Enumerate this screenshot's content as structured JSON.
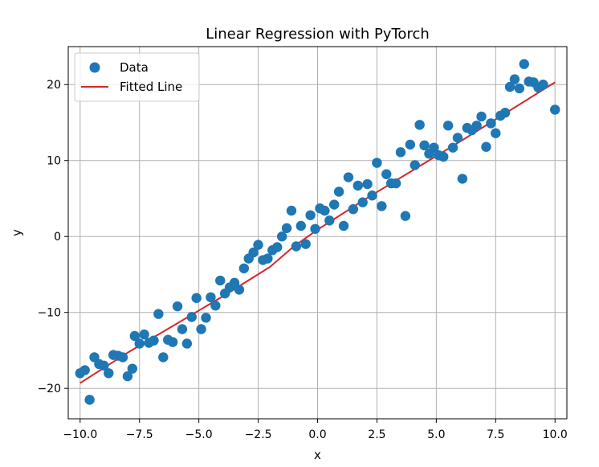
{
  "chart_data": {
    "type": "scatter",
    "title": "Linear Regression with PyTorch",
    "xlabel": "x",
    "ylabel": "y",
    "xlim": [
      -10.5,
      10.5
    ],
    "ylim": [
      -24,
      25
    ],
    "grid": true,
    "legend_placement": "top-left",
    "colors": {
      "data": "#1f77b4",
      "line": "#d62728",
      "grid": "#b0b0b0"
    },
    "x_ticks": [
      -10,
      -7.5,
      -5,
      -2.5,
      0,
      2.5,
      5,
      7.5,
      10
    ],
    "x_tick_labels": [
      "−10.0",
      "−7.5",
      "−5.0",
      "−2.5",
      "0.0",
      "2.5",
      "5.0",
      "7.5",
      "10.0"
    ],
    "y_ticks": [
      -20,
      -10,
      0,
      10,
      20
    ],
    "y_tick_labels": [
      "−20",
      "−10",
      "0",
      "10",
      "20"
    ],
    "series": [
      {
        "name": "Data",
        "kind": "scatter",
        "points": [
          [
            -10.0,
            -18.0
          ],
          [
            -9.8,
            -17.6
          ],
          [
            -9.6,
            -21.5
          ],
          [
            -9.4,
            -15.9
          ],
          [
            -9.2,
            -16.8
          ],
          [
            -9.0,
            -17.0
          ],
          [
            -8.8,
            -18.0
          ],
          [
            -8.6,
            -15.6
          ],
          [
            -8.4,
            -15.7
          ],
          [
            -8.2,
            -15.9
          ],
          [
            -8.0,
            -18.4
          ],
          [
            -7.8,
            -17.4
          ],
          [
            -7.7,
            -13.1
          ],
          [
            -7.5,
            -14.1
          ],
          [
            -7.3,
            -12.9
          ],
          [
            -7.1,
            -14.0
          ],
          [
            -6.9,
            -13.7
          ],
          [
            -6.7,
            -10.2
          ],
          [
            -6.5,
            -15.9
          ],
          [
            -6.3,
            -13.6
          ],
          [
            -6.1,
            -13.9
          ],
          [
            -5.9,
            -9.2
          ],
          [
            -5.7,
            -12.2
          ],
          [
            -5.5,
            -14.1
          ],
          [
            -5.3,
            -10.6
          ],
          [
            -5.1,
            -8.1
          ],
          [
            -4.9,
            -12.2
          ],
          [
            -4.7,
            -10.7
          ],
          [
            -4.5,
            -8.0
          ],
          [
            -4.3,
            -9.1
          ],
          [
            -4.1,
            -5.8
          ],
          [
            -3.9,
            -7.5
          ],
          [
            -3.7,
            -6.7
          ],
          [
            -3.5,
            -6.1
          ],
          [
            -3.3,
            -7.0
          ],
          [
            -3.1,
            -4.2
          ],
          [
            -2.9,
            -2.9
          ],
          [
            -2.7,
            -2.1
          ],
          [
            -2.5,
            -1.1
          ],
          [
            -2.3,
            -3.1
          ],
          [
            -2.1,
            -2.9
          ],
          [
            -1.9,
            -1.8
          ],
          [
            -1.7,
            -1.4
          ],
          [
            -1.5,
            0.0
          ],
          [
            -1.3,
            1.1
          ],
          [
            -1.1,
            3.4
          ],
          [
            -0.9,
            -1.3
          ],
          [
            -0.7,
            1.4
          ],
          [
            -0.5,
            -1.0
          ],
          [
            -0.3,
            2.8
          ],
          [
            -0.1,
            1.0
          ],
          [
            0.1,
            3.7
          ],
          [
            0.3,
            3.4
          ],
          [
            0.5,
            2.1
          ],
          [
            0.7,
            4.2
          ],
          [
            0.9,
            5.9
          ],
          [
            1.1,
            1.4
          ],
          [
            1.3,
            7.8
          ],
          [
            1.5,
            3.6
          ],
          [
            1.7,
            6.7
          ],
          [
            1.9,
            4.5
          ],
          [
            2.1,
            6.9
          ],
          [
            2.3,
            5.4
          ],
          [
            2.5,
            9.7
          ],
          [
            2.7,
            4.0
          ],
          [
            2.9,
            8.2
          ],
          [
            3.1,
            7.0
          ],
          [
            3.3,
            7.0
          ],
          [
            3.5,
            11.1
          ],
          [
            3.7,
            2.7
          ],
          [
            3.9,
            12.1
          ],
          [
            4.1,
            9.4
          ],
          [
            4.3,
            14.7
          ],
          [
            4.5,
            12.0
          ],
          [
            4.7,
            10.9
          ],
          [
            4.9,
            11.7
          ],
          [
            5.1,
            10.7
          ],
          [
            5.3,
            10.5
          ],
          [
            5.5,
            14.6
          ],
          [
            5.7,
            11.7
          ],
          [
            5.9,
            13.0
          ],
          [
            6.1,
            7.6
          ],
          [
            6.3,
            14.3
          ],
          [
            6.5,
            14.0
          ],
          [
            6.7,
            14.6
          ],
          [
            6.9,
            15.8
          ],
          [
            7.1,
            11.8
          ],
          [
            7.3,
            14.9
          ],
          [
            7.5,
            13.6
          ],
          [
            7.7,
            15.9
          ],
          [
            7.9,
            16.3
          ],
          [
            8.1,
            19.7
          ],
          [
            8.3,
            20.7
          ],
          [
            8.5,
            19.5
          ],
          [
            8.7,
            22.7
          ],
          [
            8.9,
            20.4
          ],
          [
            9.1,
            20.3
          ],
          [
            9.3,
            19.6
          ],
          [
            9.5,
            20.0
          ],
          [
            10.0,
            16.7
          ]
        ]
      },
      {
        "name": "Fitted Line",
        "kind": "line",
        "points": [
          [
            -10.0,
            -19.3
          ],
          [
            -8.0,
            -15.3
          ],
          [
            -6.0,
            -11.6
          ],
          [
            -4.0,
            -7.9
          ],
          [
            -2.0,
            -4.0
          ],
          [
            -1.0,
            -1.3
          ],
          [
            0.0,
            0.9
          ],
          [
            2.0,
            4.9
          ],
          [
            4.0,
            8.7
          ],
          [
            6.0,
            12.5
          ],
          [
            8.0,
            16.4
          ],
          [
            10.0,
            20.3
          ]
        ]
      }
    ]
  }
}
